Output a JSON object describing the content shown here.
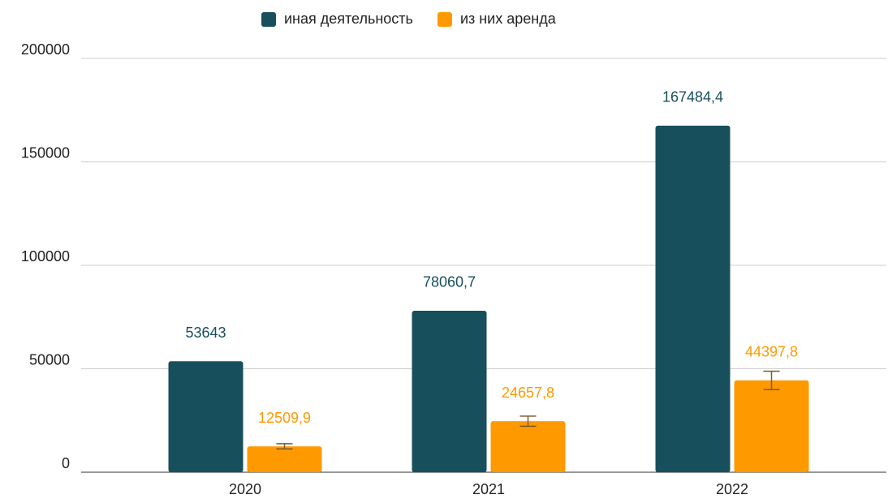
{
  "chart_data": {
    "type": "bar",
    "categories": [
      "2020",
      "2021",
      "2022"
    ],
    "series": [
      {
        "name": "иная деятельность",
        "color": "#174f5d",
        "values": [
          53643,
          78060.7,
          167484.4
        ],
        "value_labels": [
          "53643",
          "78060,7",
          "167484,4"
        ]
      },
      {
        "name": "из них аренда",
        "color": "#ff9900",
        "values": [
          12509.9,
          24657.8,
          44397.8
        ],
        "value_labels": [
          "12509,9",
          "24657,8",
          "44397,8"
        ],
        "errors": [
          1251,
          2466,
          4440
        ],
        "error_color": "#7a5a2e"
      }
    ],
    "ylim": [
      0,
      200000
    ],
    "yticks": [
      0,
      50000,
      100000,
      150000,
      200000
    ],
    "grid": true,
    "legend": "top"
  }
}
